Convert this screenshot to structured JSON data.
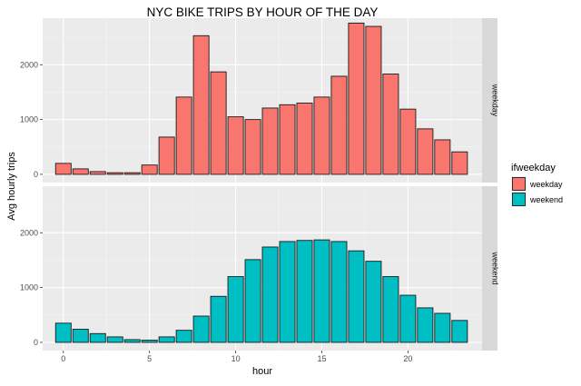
{
  "chart_data": {
    "type": "bar",
    "title": "NYC BIKE TRIPS BY HOUR OF THE DAY",
    "xlabel": "hour",
    "ylabel": "Avg hourly trips",
    "x_ticks": [
      "0",
      "5",
      "10",
      "15",
      "20"
    ],
    "y_ticks": [
      "0",
      "1000",
      "2000"
    ],
    "xlim": [
      -1.2,
      24.3
    ],
    "ylim": [
      -150,
      2850
    ],
    "grid": true,
    "legend": {
      "title": "ifweekday",
      "position": "right",
      "entries": [
        "weekday",
        "weekend"
      ]
    },
    "categories": [
      0,
      1,
      2,
      3,
      4,
      5,
      6,
      7,
      8,
      9,
      10,
      11,
      12,
      13,
      14,
      15,
      16,
      17,
      18,
      19,
      20,
      21,
      22,
      23
    ],
    "series": [
      {
        "name": "weekday",
        "panel": "weekday",
        "color": "#F8766D",
        "values": [
          200,
          100,
          50,
          30,
          30,
          170,
          680,
          1410,
          2530,
          1870,
          1050,
          1000,
          1210,
          1270,
          1300,
          1410,
          1790,
          2760,
          2700,
          1830,
          1190,
          830,
          630,
          410
        ]
      },
      {
        "name": "weekend",
        "panel": "weekend",
        "color": "#00BFC4",
        "values": [
          350,
          240,
          160,
          100,
          50,
          40,
          100,
          220,
          480,
          840,
          1200,
          1510,
          1740,
          1840,
          1860,
          1870,
          1840,
          1670,
          1480,
          1200,
          860,
          630,
          530,
          400
        ]
      }
    ]
  }
}
